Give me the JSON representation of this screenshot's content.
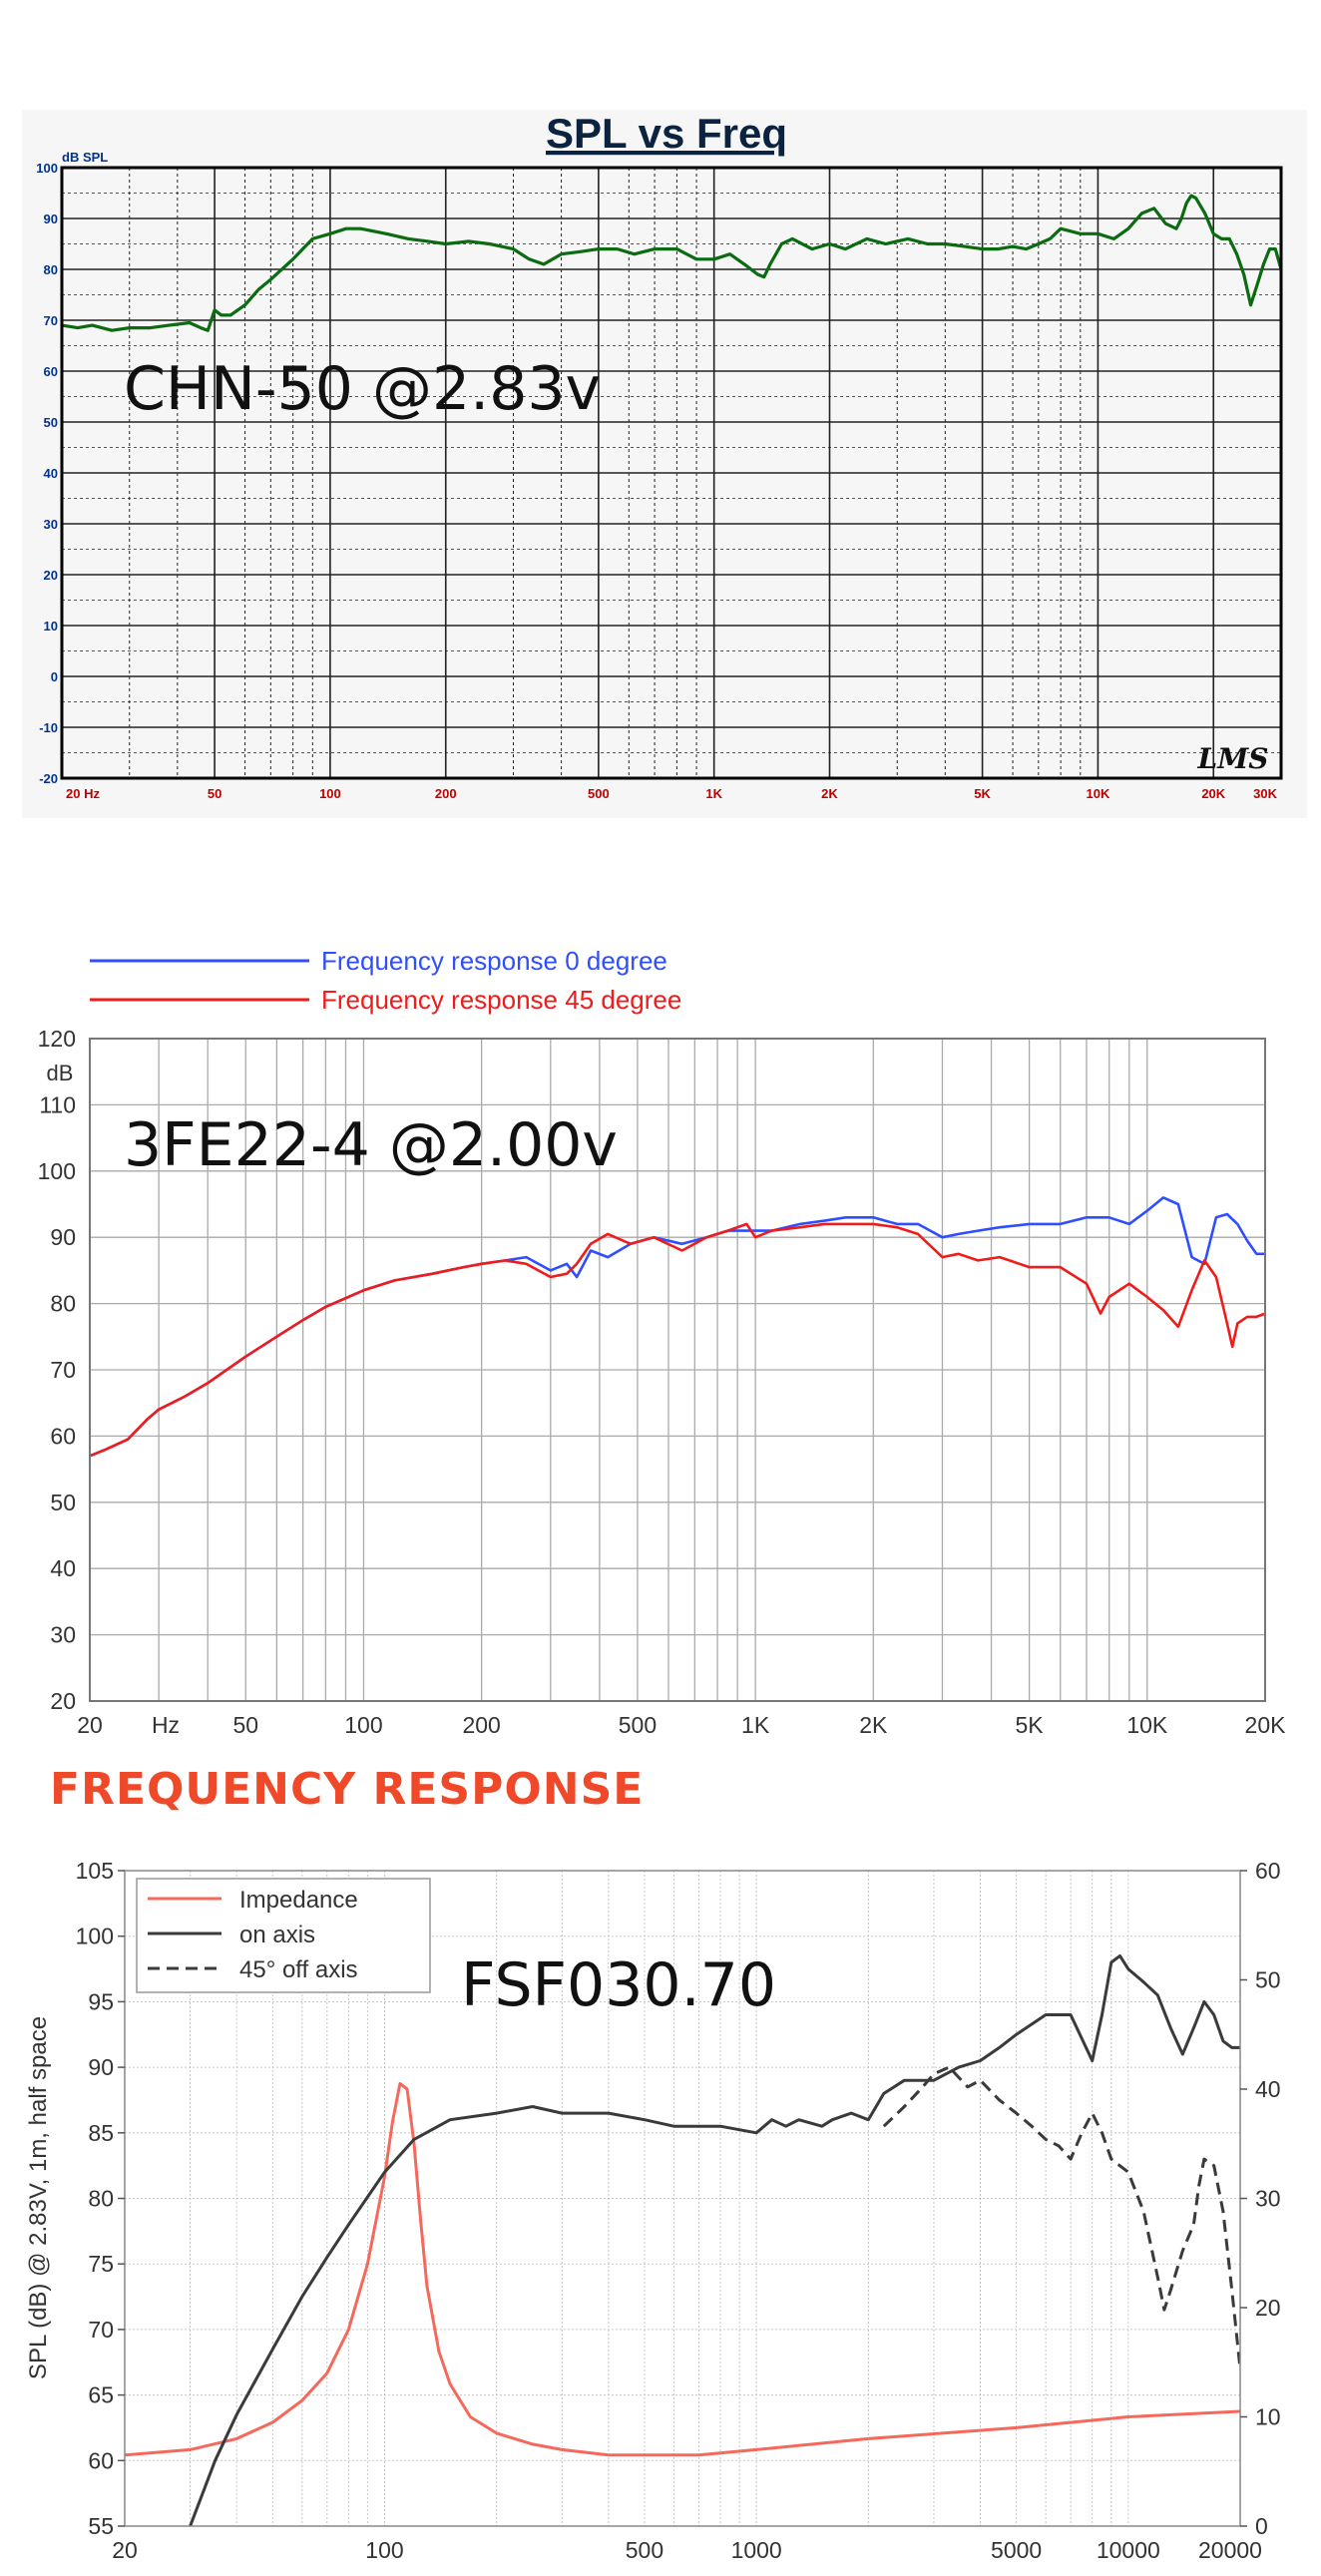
{
  "colors": {
    "green": "#0a6b10",
    "blue": "#2f4fff",
    "red": "#f01b1b",
    "impedance": "#f5685c",
    "dark": "#3a3a3a",
    "section_title": "#f0492a",
    "lms_axis": "#00338f"
  },
  "section_title": "FREQUENCY RESPONSE",
  "chart_data": [
    {
      "type": "line",
      "title": "SPL vs Freq",
      "annotation": "CHN-50 @2.83v",
      "watermark": "LMS",
      "ylabel": "dB SPL",
      "xscale": "log",
      "xlim": [
        20,
        30000
      ],
      "ylim": [
        -20,
        100
      ],
      "yticks": [
        100,
        90,
        80,
        70,
        60,
        50,
        40,
        30,
        20,
        10,
        0,
        -10,
        -20
      ],
      "ytick_labels": [
        "100",
        "90",
        "80",
        "70",
        "60",
        "50",
        "40",
        "30",
        "20",
        "10",
        "0",
        "-10",
        "-20"
      ],
      "xticks": [
        20,
        50,
        100,
        200,
        500,
        1000,
        2000,
        5000,
        10000,
        20000,
        30000
      ],
      "xtick_labels": [
        "20 Hz",
        "50",
        "100",
        "200",
        "500",
        "1K",
        "2K",
        "5K",
        "10K",
        "20K",
        "30K"
      ],
      "grid": true,
      "series": [
        {
          "x": [
            20,
            22,
            24,
            27,
            30,
            34,
            38,
            43,
            46,
            48,
            50,
            52,
            55,
            60,
            65,
            70,
            80,
            90,
            100,
            110,
            120,
            140,
            160,
            180,
            200,
            230,
            260,
            300,
            330,
            360,
            400,
            450,
            500,
            560,
            620,
            700,
            800,
            900,
            1000,
            1100,
            1200,
            1300,
            1350,
            1400,
            1500,
            1600,
            1800,
            2000,
            2200,
            2500,
            2800,
            3200,
            3600,
            4000,
            4500,
            5000,
            5500,
            6000,
            6500,
            7000,
            7500,
            8000,
            8500,
            9000,
            10000,
            11000,
            12000,
            13000,
            14000,
            15000,
            16000,
            16500,
            17000,
            17500,
            18000,
            19000,
            20000,
            21000,
            22000,
            23000,
            24000,
            25000,
            26000,
            27000,
            28000,
            29000,
            30000
          ],
          "y": [
            69,
            68.5,
            69,
            68,
            68.5,
            68.5,
            69,
            69.5,
            68.5,
            68,
            72,
            71,
            71,
            73,
            76,
            78,
            82,
            86,
            87,
            88,
            88,
            87,
            86,
            85.5,
            85,
            85.5,
            85,
            84,
            82,
            81,
            83,
            83.5,
            84,
            84,
            83,
            84,
            84,
            82,
            82,
            83,
            81,
            79,
            78.5,
            81,
            85,
            86,
            84,
            85,
            84,
            86,
            85,
            86,
            85,
            85,
            84.5,
            84,
            84,
            84.5,
            84,
            85,
            86,
            88,
            87.5,
            87,
            87,
            86,
            88,
            91,
            92,
            89,
            88,
            90,
            93,
            94.5,
            94,
            91,
            87,
            86,
            86,
            83,
            79,
            73,
            77,
            81,
            84,
            84,
            80
          ]
        }
      ]
    },
    {
      "type": "line",
      "annotation": "3FE22-4 @2.00v",
      "ylabel": "dB",
      "xscale": "log",
      "xlim": [
        20,
        20000
      ],
      "ylim": [
        20,
        120
      ],
      "yticks": [
        120,
        110,
        100,
        90,
        80,
        70,
        60,
        50,
        40,
        30,
        20
      ],
      "ytick_labels": [
        "120",
        "110",
        "100",
        "90",
        "80",
        "70",
        "60",
        "50",
        "40",
        "30",
        "20"
      ],
      "xticks": [
        20,
        50,
        100,
        200,
        500,
        1000,
        2000,
        5000,
        10000,
        20000
      ],
      "xtick_labels": [
        "20",
        "50",
        "100",
        "200",
        "500",
        "1K",
        "2K",
        "5K",
        "10K",
        "20K"
      ],
      "xunit_label": "Hz",
      "grid": true,
      "legend": "top-left",
      "series": [
        {
          "name": "Frequency response 0 degree",
          "x": [
            20,
            22,
            25,
            28,
            30,
            35,
            40,
            50,
            60,
            70,
            80,
            100,
            120,
            150,
            180,
            200,
            230,
            260,
            300,
            330,
            350,
            380,
            420,
            480,
            550,
            650,
            750,
            850,
            950,
            1000,
            1100,
            1300,
            1500,
            1700,
            2000,
            2300,
            2600,
            3000,
            3300,
            3700,
            4200,
            5000,
            6000,
            7000,
            8000,
            9000,
            10000,
            11000,
            12000,
            13000,
            14000,
            15000,
            16000,
            17000,
            18000,
            19000,
            20000
          ],
          "y": [
            57,
            58,
            59.5,
            62.5,
            64,
            66,
            68,
            72,
            75,
            77.5,
            79.5,
            82,
            83.5,
            84.5,
            85.5,
            86,
            86.5,
            87,
            85,
            86,
            84,
            88,
            87,
            89,
            90,
            89,
            90,
            91,
            91,
            91,
            91,
            92,
            92.5,
            93,
            93,
            92,
            92,
            90,
            90.5,
            91,
            91.5,
            92,
            92,
            93,
            93,
            92,
            94,
            96,
            95,
            87,
            86,
            93,
            93.5,
            92,
            89.5,
            87.5,
            87.5
          ]
        },
        {
          "name": "Frequency response 45 degree",
          "x": [
            20,
            22,
            25,
            28,
            30,
            35,
            40,
            50,
            60,
            70,
            80,
            100,
            120,
            150,
            180,
            200,
            230,
            260,
            300,
            330,
            350,
            380,
            420,
            480,
            550,
            650,
            750,
            850,
            950,
            1000,
            1100,
            1300,
            1500,
            1700,
            2000,
            2300,
            2600,
            3000,
            3300,
            3700,
            4200,
            5000,
            6000,
            7000,
            7600,
            8000,
            9000,
            10000,
            11000,
            12000,
            13000,
            14000,
            15000,
            16000,
            16500,
            17000,
            18000,
            19000,
            20000
          ],
          "y": [
            57,
            58,
            59.5,
            62.5,
            64,
            66,
            68,
            72,
            75,
            77.5,
            79.5,
            82,
            83.5,
            84.5,
            85.5,
            86,
            86.5,
            86,
            84,
            84.5,
            86,
            89,
            90.5,
            89,
            90,
            88,
            90,
            91,
            92,
            90,
            91,
            91.5,
            92,
            92,
            92,
            91.5,
            90.5,
            87,
            87.5,
            86.5,
            87,
            85.5,
            85.5,
            83,
            78.5,
            81,
            83,
            81,
            79,
            76.5,
            82,
            86.5,
            84,
            77,
            73.5,
            77,
            78,
            78,
            78.5
          ]
        }
      ]
    },
    {
      "type": "line",
      "annotation": "FSF030.70",
      "ylabel": "SPL (dB) @ 2.83V, 1m, half space",
      "xscale": "log",
      "xlim": [
        20,
        20000
      ],
      "ylim": [
        55,
        105
      ],
      "y2lim": [
        0,
        60
      ],
      "yticks": [
        105,
        100,
        95,
        90,
        85,
        80,
        75,
        70,
        65,
        60,
        55
      ],
      "ytick_labels": [
        "105",
        "100",
        "95",
        "90",
        "85",
        "80",
        "75",
        "70",
        "65",
        "60",
        "55"
      ],
      "y2ticks": [
        60,
        50,
        40,
        30,
        20,
        10,
        0
      ],
      "y2tick_labels": [
        "60",
        "50",
        "40",
        "30",
        "20",
        "10",
        "0"
      ],
      "xticks": [
        20,
        100,
        500,
        1000,
        5000,
        10000,
        20000
      ],
      "xtick_labels": [
        "20",
        "100",
        "500",
        "1000",
        "5000",
        "10000",
        "20000"
      ],
      "grid": true,
      "legend": "top-left",
      "series": [
        {
          "name": "Impedance",
          "axis": "right",
          "style": "solid",
          "x": [
            20,
            30,
            40,
            50,
            60,
            70,
            80,
            90,
            100,
            105,
            110,
            115,
            120,
            125,
            130,
            140,
            150,
            170,
            200,
            250,
            300,
            400,
            500,
            700,
            1000,
            2000,
            5000,
            10000,
            20000
          ],
          "y": [
            6.5,
            7,
            8,
            9.5,
            11.5,
            14,
            18,
            24,
            32,
            37,
            40.5,
            40,
            35,
            28,
            22,
            16,
            13,
            10,
            8.5,
            7.5,
            7,
            6.5,
            6.5,
            6.5,
            7,
            8,
            9,
            10,
            10.5
          ]
        },
        {
          "name": "on axis",
          "axis": "left",
          "style": "solid",
          "x": [
            20,
            30,
            35,
            40,
            50,
            60,
            70,
            80,
            100,
            120,
            150,
            200,
            250,
            300,
            400,
            500,
            600,
            700,
            800,
            1000,
            1100,
            1200,
            1300,
            1500,
            1600,
            1800,
            2000,
            2200,
            2500,
            3000,
            3500,
            4000,
            4500,
            5000,
            6000,
            7000,
            8000,
            8500,
            9000,
            9500,
            10000,
            11000,
            12000,
            13000,
            14000,
            15000,
            16000,
            17000,
            18000,
            19000,
            20000
          ],
          "y": [
            42,
            55,
            60,
            63.5,
            68.5,
            72.5,
            75.5,
            78,
            82,
            84.5,
            86,
            86.5,
            87,
            86.5,
            86.5,
            86,
            85.5,
            85.5,
            85.5,
            85,
            86,
            85.5,
            86,
            85.5,
            86,
            86.5,
            86,
            88,
            89,
            89,
            90,
            90.5,
            91.5,
            92.5,
            94,
            94,
            90.5,
            94,
            98,
            98.5,
            97.5,
            96.5,
            95.5,
            93,
            91,
            93,
            95,
            94,
            92,
            91.5,
            91.5
          ]
        },
        {
          "name": "45° off axis",
          "axis": "left",
          "style": "dashed",
          "x": [
            2200,
            2500,
            2800,
            3000,
            3300,
            3700,
            4000,
            4500,
            5000,
            5500,
            6000,
            6500,
            7000,
            7500,
            8000,
            8500,
            9000,
            10000,
            11000,
            12000,
            12500,
            13000,
            14000,
            15000,
            15500,
            16000,
            17000,
            18000,
            19000,
            20000
          ],
          "y": [
            85.5,
            87,
            88.5,
            89.5,
            90,
            88.5,
            89,
            87.5,
            86.5,
            85.5,
            84.5,
            84,
            83,
            85,
            86.5,
            85,
            83,
            82,
            79,
            74,
            71.5,
            73,
            76,
            78,
            81,
            83,
            82.5,
            79,
            73,
            67
          ]
        }
      ]
    }
  ]
}
